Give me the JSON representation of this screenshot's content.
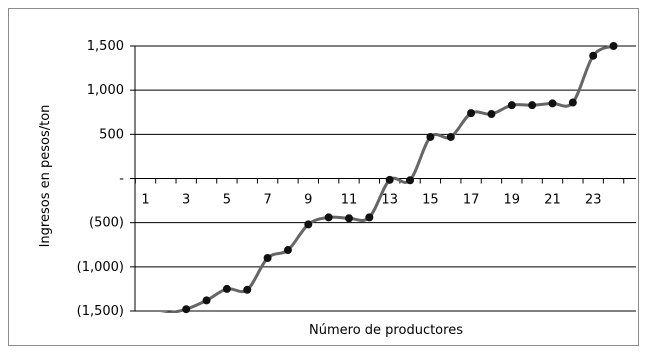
{
  "chart_data": {
    "type": "line",
    "title": "",
    "xlabel": "Número de productores",
    "ylabel": "Ingresos en pesos/ton",
    "ylim": [
      -1500,
      1500
    ],
    "y_ticks": [
      {
        "value": 1500,
        "label": "1,500"
      },
      {
        "value": 1000,
        "label": "1,000"
      },
      {
        "value": 500,
        "label": "500"
      },
      {
        "value": 0,
        "label": "-"
      },
      {
        "value": -500,
        "label": "(500)"
      },
      {
        "value": -1000,
        "label": "(1,000)"
      },
      {
        "value": -1500,
        "label": "(1,500)"
      }
    ],
    "x_ticks": [
      "1",
      "3",
      "5",
      "7",
      "9",
      "11",
      "13",
      "15",
      "17",
      "19",
      "21",
      "23"
    ],
    "grid": "horizontal",
    "x": [
      1,
      2,
      3,
      4,
      5,
      6,
      7,
      8,
      9,
      10,
      11,
      12,
      13,
      14,
      15,
      16,
      17,
      18,
      19,
      20,
      21,
      22,
      23,
      24
    ],
    "values": [
      -1560,
      -1530,
      -1480,
      -1380,
      -1250,
      -1260,
      -900,
      -810,
      -520,
      -440,
      -450,
      -440,
      -15,
      -20,
      470,
      470,
      740,
      730,
      830,
      830,
      850,
      860,
      1390,
      1500
    ],
    "markers_from_index": 2,
    "line_color": "#666666",
    "marker_color": "#111111"
  }
}
